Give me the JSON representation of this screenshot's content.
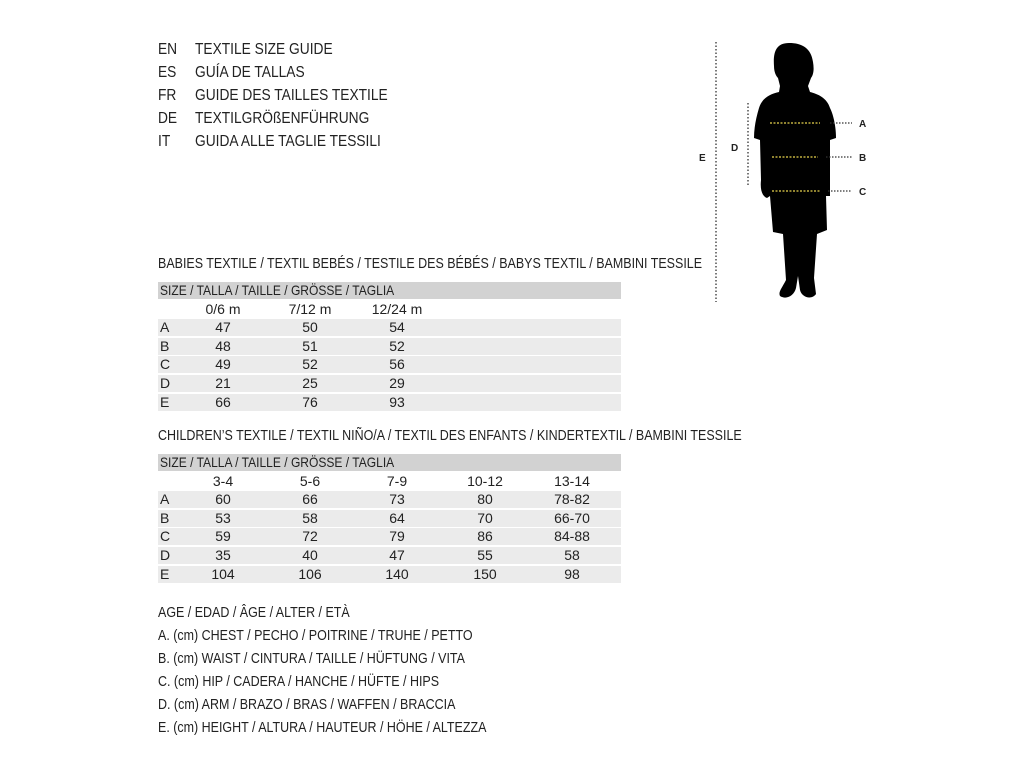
{
  "header": {
    "languages": [
      {
        "code": "EN",
        "text": "TEXTILE SIZE GUIDE"
      },
      {
        "code": "ES",
        "text": "GUÍA DE TALLAS"
      },
      {
        "code": "FR",
        "text": "GUIDE DES TAILLES TEXTILE"
      },
      {
        "code": "DE",
        "text": "TEXTILGRÖßENFÜHRUNG"
      },
      {
        "code": "IT",
        "text": "GUIDA ALLE TAGLIE TESSILI"
      }
    ]
  },
  "figure": {
    "labels": {
      "a": "A",
      "b": "B",
      "c": "C",
      "d": "D",
      "e": "E"
    },
    "measure_line_color": "#e8d44d"
  },
  "babies": {
    "title": "BABIES TEXTILE / TEXTIL BEBÉS / TESTILE DES BÉBÉS / BABYS TEXTIL / BAMBINI TESSILE",
    "size_header": "SIZE / TALLA / TAILLE / GRÖSSE / TAGLIA",
    "columns": [
      "0/6 m",
      "7/12 m",
      "12/24 m"
    ],
    "rows": [
      {
        "label": "A",
        "values": [
          "47",
          "50",
          "54"
        ]
      },
      {
        "label": "B",
        "values": [
          "48",
          "51",
          "52"
        ]
      },
      {
        "label": "C",
        "values": [
          "49",
          "52",
          "56"
        ]
      },
      {
        "label": "D",
        "values": [
          "21",
          "25",
          "29"
        ]
      },
      {
        "label": "E",
        "values": [
          "66",
          "76",
          "93"
        ]
      }
    ]
  },
  "children": {
    "title": "CHILDREN’S TEXTILE / TEXTIL NIÑO/A / TEXTIL DES ENFANTS / KINDERTEXTIL / BAMBINI TESSILE",
    "size_header": "SIZE / TALLA / TAILLE / GRÖSSE / TAGLIA",
    "columns": [
      "3-4",
      "5-6",
      "7-9",
      "10-12",
      "13-14"
    ],
    "rows": [
      {
        "label": "A",
        "values": [
          "60",
          "66",
          "73",
          "80",
          "78-82"
        ]
      },
      {
        "label": "B",
        "values": [
          "53",
          "58",
          "64",
          "70",
          "66-70"
        ]
      },
      {
        "label": "C",
        "values": [
          "59",
          "72",
          "79",
          "86",
          "84-88"
        ]
      },
      {
        "label": "D",
        "values": [
          "35",
          "40",
          "47",
          "55",
          "58"
        ]
      },
      {
        "label": "E",
        "values": [
          "104",
          "106",
          "140",
          "150",
          "98"
        ]
      }
    ]
  },
  "legend": [
    "AGE / EDAD / ÂGE / ALTER / ETÀ",
    "A. (cm) CHEST / PECHO / POITRINE / TRUHE / PETTO",
    "B. (cm) WAIST / CINTURA / TAILLE / HÜFTUNG / VITA",
    "C. (cm) HIP / CADERA / HANCHE / HÜFTE / HIPS",
    "D. (cm) ARM / BRAZO / BRAS / WAFFEN / BRACCIA",
    "E. (cm) HEIGHT / ALTURA / HAUTEUR / HÖHE / ALTEZZA"
  ]
}
